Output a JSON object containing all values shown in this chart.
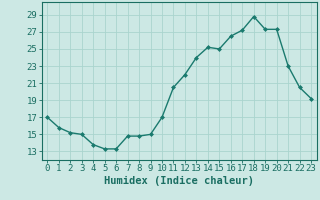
{
  "x": [
    0,
    1,
    2,
    3,
    4,
    5,
    6,
    7,
    8,
    9,
    10,
    11,
    12,
    13,
    14,
    15,
    16,
    17,
    18,
    19,
    20,
    21,
    22,
    23
  ],
  "y": [
    17.0,
    15.8,
    15.2,
    15.0,
    13.8,
    13.3,
    13.3,
    14.8,
    14.8,
    15.0,
    17.0,
    20.5,
    22.0,
    24.0,
    25.2,
    25.0,
    26.5,
    27.2,
    28.8,
    27.3,
    27.3,
    23.0,
    20.5,
    19.2
  ],
  "line_color": "#1a7a6e",
  "marker": "D",
  "marker_size": 2.0,
  "bg_color": "#cce8e4",
  "grid_color": "#aad4ce",
  "xlabel": "Humidex (Indice chaleur)",
  "xlabel_fontsize": 7.5,
  "yticks": [
    13,
    15,
    17,
    19,
    21,
    23,
    25,
    27,
    29
  ],
  "xticks": [
    0,
    1,
    2,
    3,
    4,
    5,
    6,
    7,
    8,
    9,
    10,
    11,
    12,
    13,
    14,
    15,
    16,
    17,
    18,
    19,
    20,
    21,
    22,
    23
  ],
  "ylim": [
    12.0,
    30.5
  ],
  "xlim": [
    -0.5,
    23.5
  ],
  "tick_fontsize": 6.5,
  "tick_color": "#1a6e62",
  "axes_color": "#1a6e62",
  "linewidth": 1.0
}
